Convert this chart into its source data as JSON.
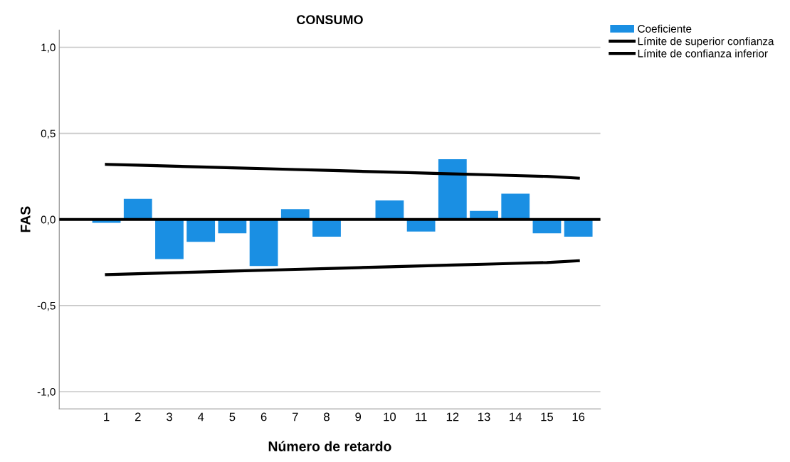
{
  "chart_data": {
    "type": "bar",
    "title": "CONSUMO",
    "xlabel": "Número de retardo",
    "ylabel": "FAS",
    "categories": [
      "1",
      "2",
      "3",
      "4",
      "5",
      "6",
      "7",
      "8",
      "9",
      "10",
      "11",
      "12",
      "13",
      "14",
      "15",
      "16"
    ],
    "series": [
      {
        "name": "Coeficiente",
        "color": "#1a8fe3",
        "values": [
          -0.02,
          0.12,
          -0.23,
          -0.13,
          -0.08,
          -0.27,
          0.06,
          -0.1,
          0.0,
          0.11,
          -0.07,
          0.35,
          0.05,
          0.15,
          -0.08,
          -0.1
        ]
      },
      {
        "name": "Límite de superior confianza",
        "type": "line",
        "color": "#000000",
        "values": [
          0.32,
          0.315,
          0.31,
          0.305,
          0.3,
          0.295,
          0.29,
          0.285,
          0.28,
          0.275,
          0.27,
          0.265,
          0.26,
          0.255,
          0.25,
          0.24
        ]
      },
      {
        "name": "Límite de confianza inferior",
        "type": "line",
        "color": "#000000",
        "values": [
          -0.32,
          -0.315,
          -0.31,
          -0.305,
          -0.3,
          -0.295,
          -0.29,
          -0.285,
          -0.28,
          -0.275,
          -0.27,
          -0.265,
          -0.26,
          -0.255,
          -0.25,
          -0.24
        ]
      }
    ],
    "ylim": [
      -1.1,
      1.1
    ],
    "yticks": [
      {
        "value": -1.0,
        "label": "-1,0"
      },
      {
        "value": -0.5,
        "label": "-0,5"
      },
      {
        "value": 0.0,
        "label": "0,0"
      },
      {
        "value": 0.5,
        "label": "0,5"
      },
      {
        "value": 1.0,
        "label": "1,0"
      }
    ],
    "ref_lines": [
      {
        "axis": "y",
        "value": 0.0,
        "color": "#000000"
      }
    ],
    "grid": "y",
    "legend": "top right"
  }
}
